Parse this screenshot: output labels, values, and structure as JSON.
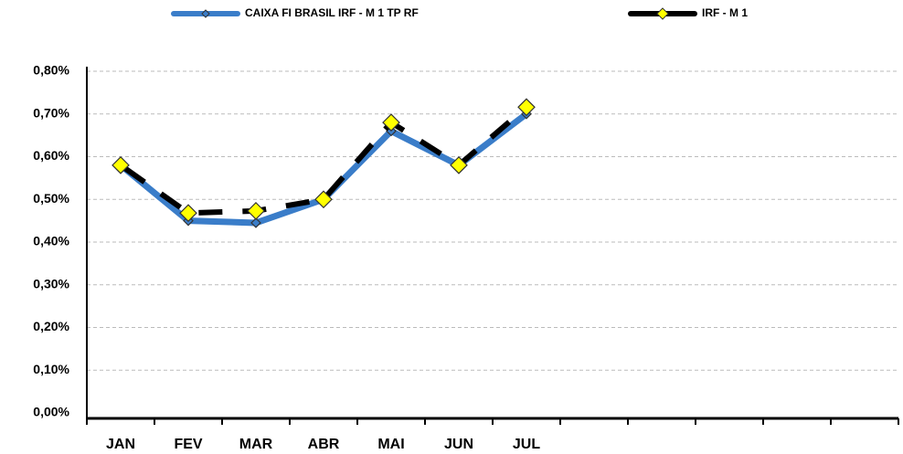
{
  "chart_data": {
    "type": "line",
    "categories": [
      "JAN",
      "FEV",
      "MAR",
      "ABR",
      "MAI",
      "JUN",
      "JUL",
      null,
      null,
      null,
      null,
      null
    ],
    "series": [
      {
        "name": "CAIXA FI BRASIL IRF - M 1 TP RF",
        "color": "#3a7dc9",
        "marker_color": "#3a7dc9",
        "dashed": false,
        "values": [
          0.58,
          0.45,
          0.445,
          0.5,
          0.66,
          0.58,
          0.7,
          null,
          null,
          null,
          null,
          null
        ]
      },
      {
        "name": "IRF - M 1",
        "color": "#000000",
        "marker_color": "#ffff00",
        "dashed": true,
        "values": [
          0.58,
          0.468,
          0.473,
          0.5,
          0.68,
          0.58,
          0.716,
          null,
          null,
          null,
          null,
          null
        ]
      }
    ],
    "ylim": [
      0,
      0.8
    ],
    "yticks": [
      {
        "value": 0,
        "label": "0,00%"
      },
      {
        "value": 0.1,
        "label": "0,10%"
      },
      {
        "value": 0.2,
        "label": "0,20%"
      },
      {
        "value": 0.3,
        "label": "0,30%"
      },
      {
        "value": 0.4,
        "label": "0,40%"
      },
      {
        "value": 0.5,
        "label": "0,50%"
      },
      {
        "value": 0.6,
        "label": "0,60%"
      },
      {
        "value": 0.7,
        "label": "0,70%"
      },
      {
        "value": 0.8,
        "label": "0,80%"
      }
    ],
    "grid": true,
    "legend": "top"
  }
}
